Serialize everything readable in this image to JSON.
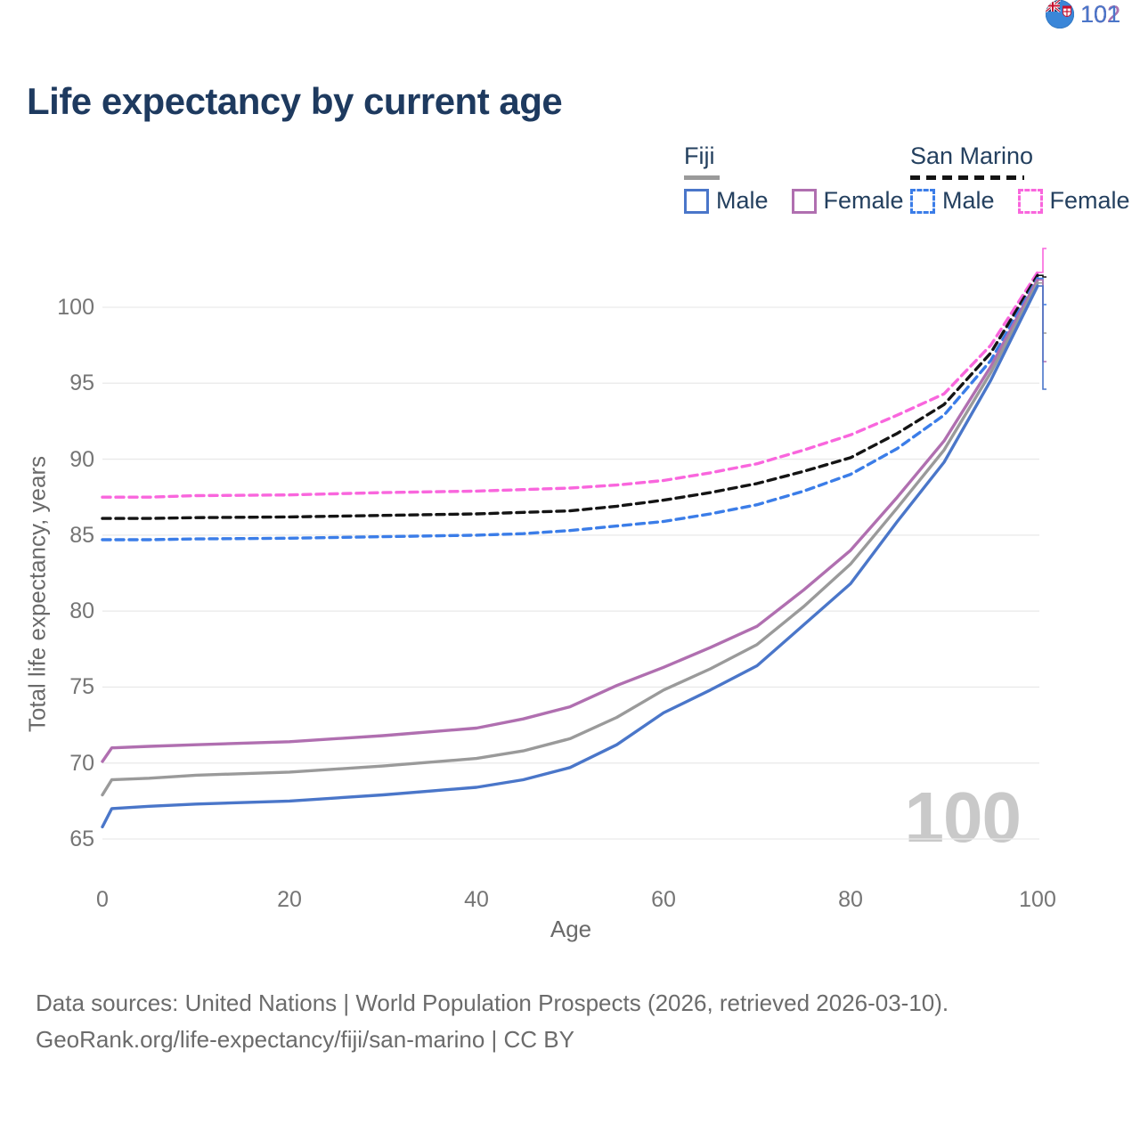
{
  "title": "Life expectancy by current age",
  "legend": {
    "groups": [
      {
        "label": "Fiji",
        "line_style": "solid",
        "underline_color": "#9a9a9a",
        "items": [
          {
            "label": "Male",
            "color": "#4a76c9"
          },
          {
            "label": "Female",
            "color": "#b06fb0"
          }
        ]
      },
      {
        "label": "San Marino",
        "line_style": "dashed",
        "underline_color": "#141414",
        "items": [
          {
            "label": "Male",
            "color": "#3b7de8"
          },
          {
            "label": "Female",
            "color": "#f966dd"
          }
        ]
      }
    ]
  },
  "chart_data": {
    "type": "line",
    "title": "Life expectancy by current age",
    "xlabel": "Age",
    "ylabel": "Total life expectancy, years",
    "xlim": [
      0,
      100
    ],
    "ylim": [
      65,
      103
    ],
    "xticks": [
      0,
      20,
      40,
      60,
      80,
      100
    ],
    "yticks": [
      65,
      70,
      75,
      80,
      85,
      90,
      95,
      100
    ],
    "grid": "horizontal",
    "legend_position": "top-right",
    "x": [
      0,
      1,
      5,
      10,
      20,
      30,
      40,
      45,
      50,
      55,
      60,
      65,
      70,
      75,
      80,
      85,
      90,
      95,
      100
    ],
    "series": [
      {
        "name": "San Marino Female",
        "country": "San Marino",
        "sex": "Female",
        "color": "#f966dd",
        "dashed": true,
        "values": [
          87.5,
          87.5,
          87.5,
          87.6,
          87.65,
          87.8,
          87.9,
          88.0,
          88.1,
          88.3,
          88.6,
          89.1,
          89.7,
          90.6,
          91.6,
          92.9,
          94.3,
          97.5,
          102.3
        ]
      },
      {
        "name": "San Marino Total",
        "country": "San Marino",
        "sex": "Total",
        "color": "#141414",
        "dashed": true,
        "values": [
          86.1,
          86.1,
          86.1,
          86.15,
          86.2,
          86.3,
          86.4,
          86.5,
          86.6,
          86.9,
          87.3,
          87.8,
          88.4,
          89.2,
          90.1,
          91.7,
          93.6,
          97.0,
          102.1
        ]
      },
      {
        "name": "San Marino Male",
        "country": "San Marino",
        "sex": "Male",
        "color": "#3b7de8",
        "dashed": true,
        "values": [
          84.7,
          84.7,
          84.7,
          84.75,
          84.8,
          84.9,
          85.0,
          85.1,
          85.3,
          85.6,
          85.9,
          86.4,
          87.0,
          87.9,
          89.0,
          90.7,
          92.9,
          96.5,
          101.9
        ]
      },
      {
        "name": "Fiji Female",
        "country": "Fiji",
        "sex": "Female",
        "color": "#b06fb0",
        "dashed": false,
        "values": [
          70.1,
          71.0,
          71.1,
          71.2,
          71.4,
          71.8,
          72.3,
          72.9,
          73.7,
          75.1,
          76.3,
          77.6,
          79.0,
          81.4,
          84.0,
          87.5,
          91.2,
          96.1,
          101.8
        ]
      },
      {
        "name": "Fiji Total",
        "country": "Fiji",
        "sex": "Total",
        "color": "#9a9a9a",
        "dashed": false,
        "values": [
          67.9,
          68.9,
          69.0,
          69.2,
          69.4,
          69.8,
          70.3,
          70.8,
          71.6,
          73.0,
          74.8,
          76.2,
          77.8,
          80.3,
          83.1,
          86.8,
          90.6,
          95.7,
          101.6
        ]
      },
      {
        "name": "Fiji Male",
        "country": "Fiji",
        "sex": "Male",
        "color": "#4a76c9",
        "dashed": false,
        "values": [
          65.8,
          67.0,
          67.15,
          67.3,
          67.5,
          67.9,
          68.4,
          68.9,
          69.7,
          71.2,
          73.3,
          74.8,
          76.4,
          79.1,
          81.8,
          85.9,
          89.8,
          95.2,
          101.4
        ]
      }
    ],
    "end_labels": [
      {
        "series": "San Marino Female",
        "flag": "San Marino",
        "value": "102",
        "color": "#f966dd"
      },
      {
        "series": "San Marino Total",
        "flag": "San Marino",
        "value": "102",
        "color": "#141414"
      },
      {
        "series": "San Marino Male",
        "flag": "San Marino",
        "value": "102",
        "color": "#3b7de8"
      },
      {
        "series": "Fiji Total",
        "flag": "Fiji",
        "value": "102",
        "color": "#9a9a9a"
      },
      {
        "series": "Fiji Female",
        "flag": "Fiji",
        "value": "102",
        "color": "#b06fb0"
      },
      {
        "series": "Fiji Male",
        "flag": "Fiji",
        "value": "101",
        "color": "#4a76c9"
      }
    ],
    "age_indicator": "100"
  },
  "footer": {
    "line1": "Data sources: United Nations | World Population Prospects (2026, retrieved 2026-03-10).",
    "line2": "GeoRank.org/life-expectancy/fiji/san-marino | CC BY"
  }
}
